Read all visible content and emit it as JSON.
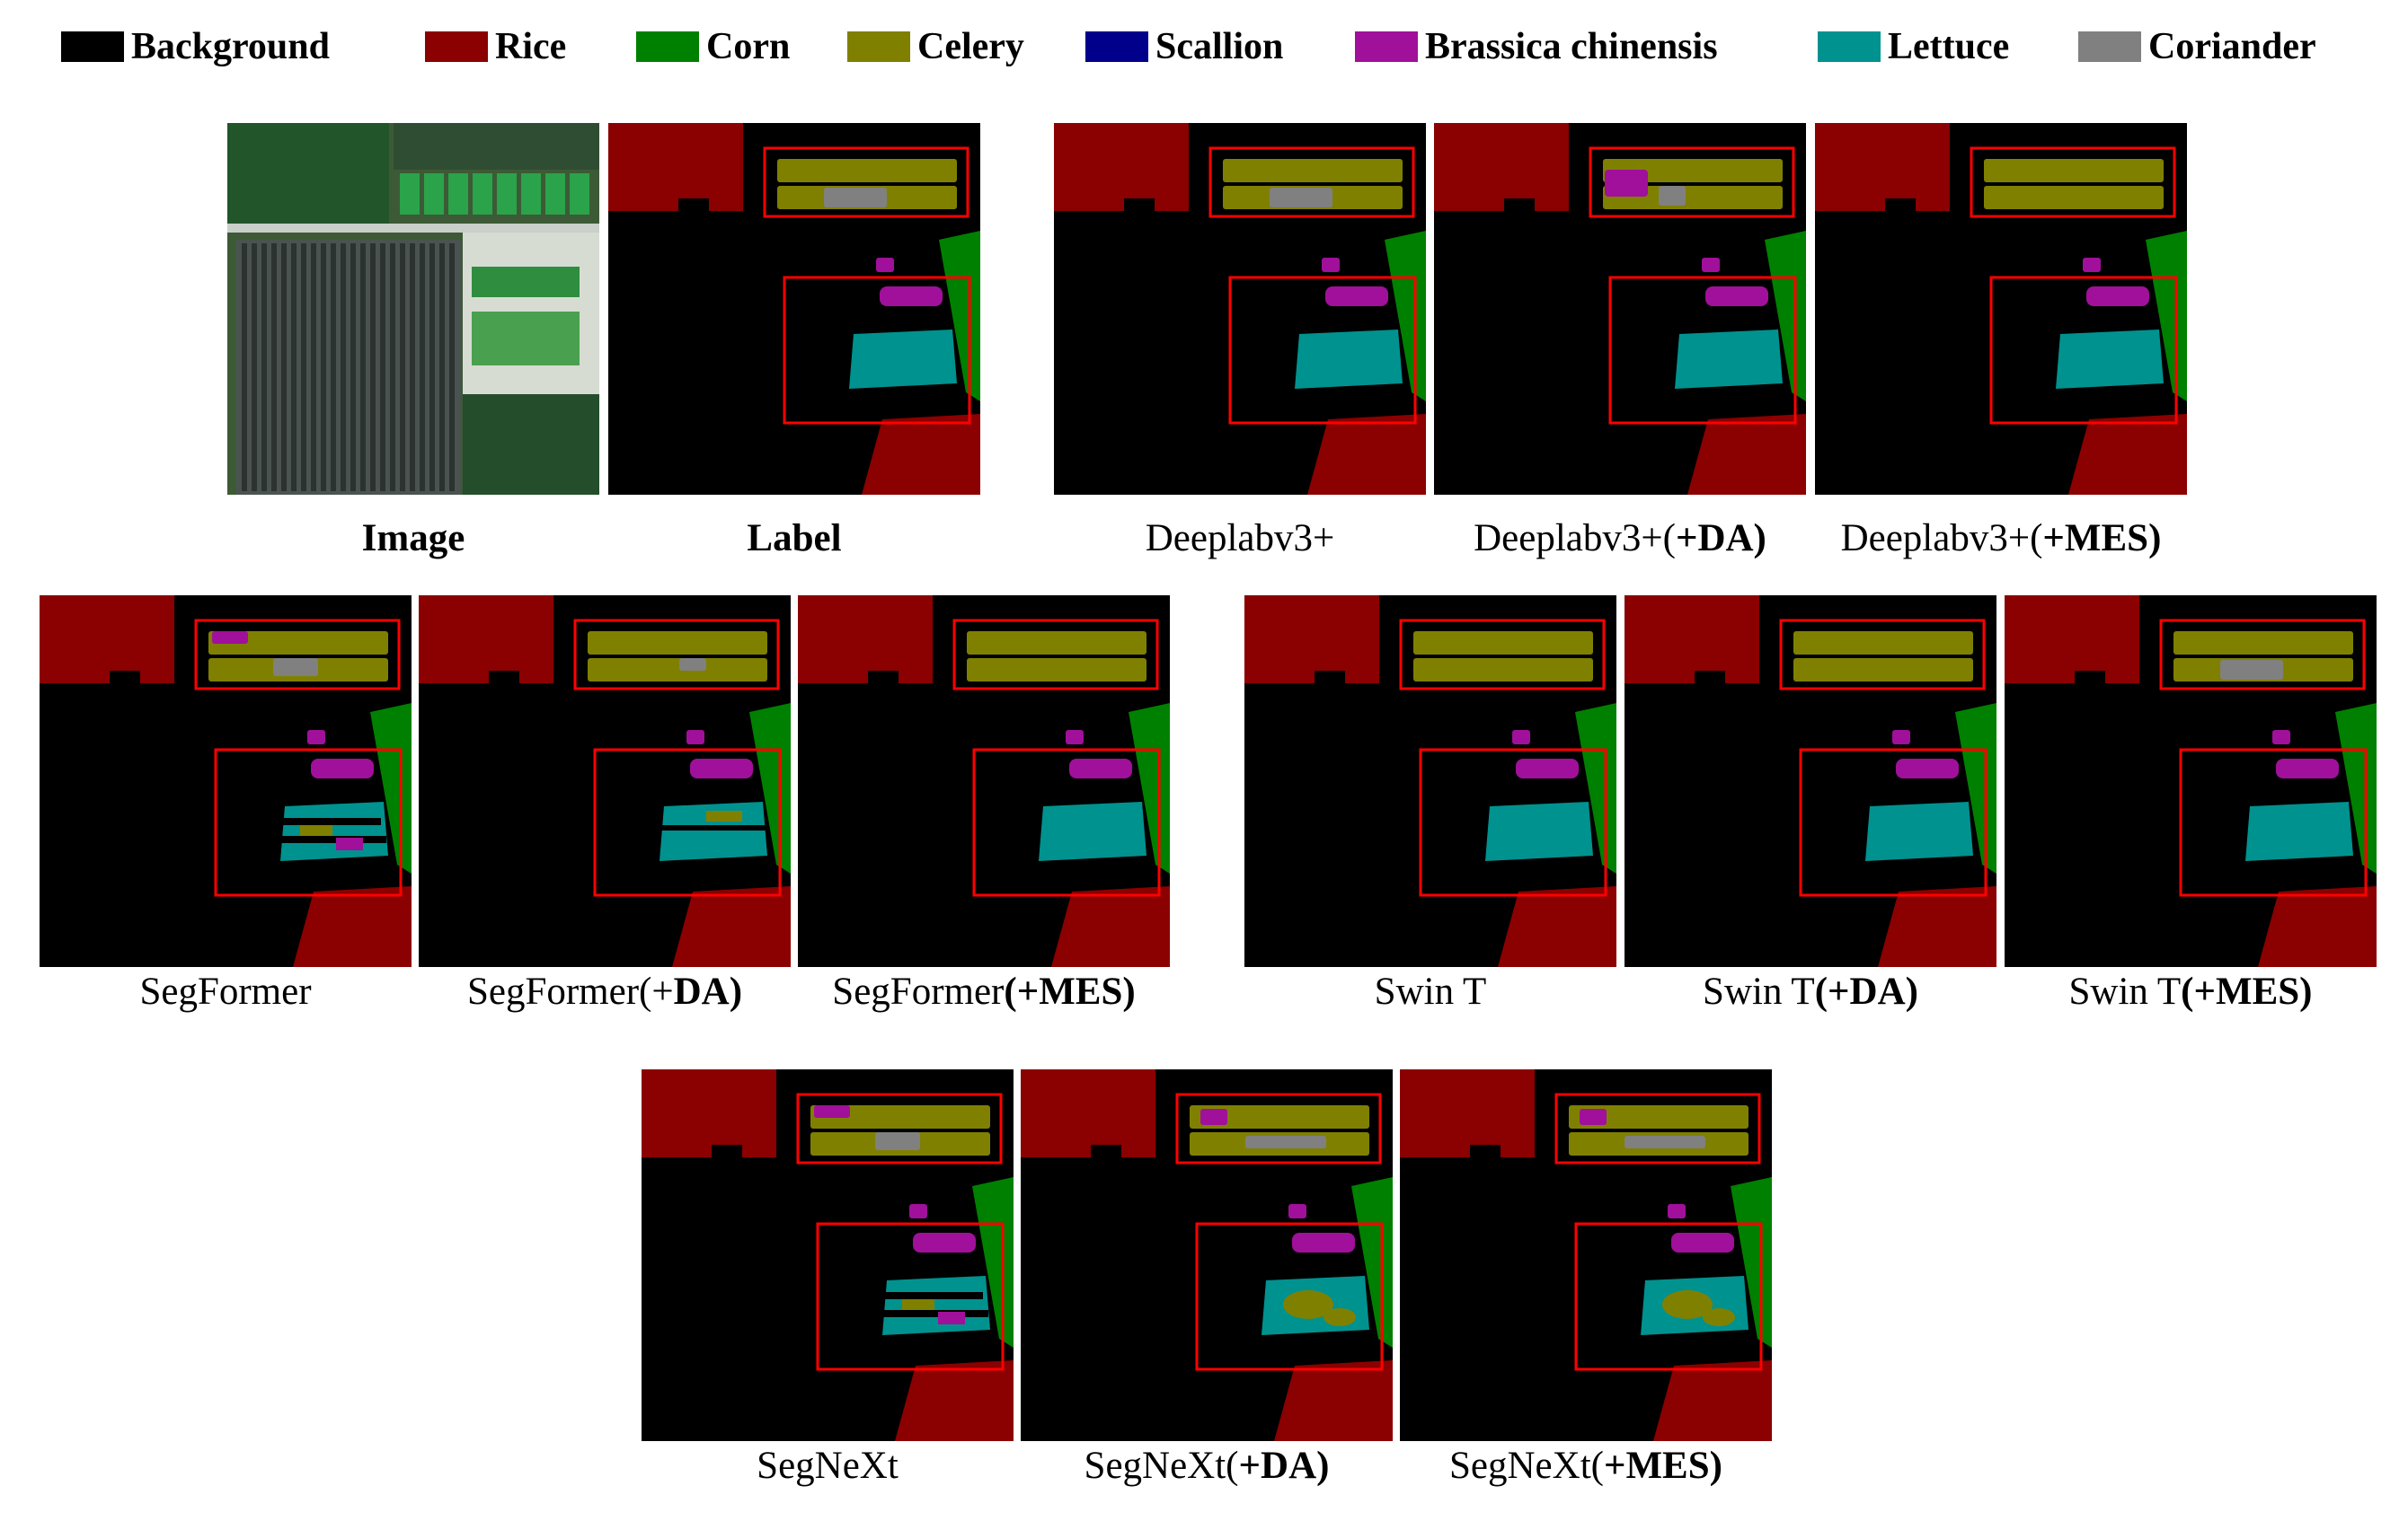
{
  "legend": [
    {
      "label": "Background",
      "color": "#000000"
    },
    {
      "label": "Rice",
      "color": "#8b0000"
    },
    {
      "label": "Corn",
      "color": "#008000"
    },
    {
      "label": "Celery",
      "color": "#808000"
    },
    {
      "label": "Scallion",
      "color": "#00008b"
    },
    {
      "label": "Brassica chinensis",
      "color": "#a0109a"
    },
    {
      "label": "Lettuce",
      "color": "#00928f"
    },
    {
      "label": "Coriander",
      "color": "#808080"
    }
  ],
  "panels": [
    {
      "id": "image",
      "caption_plain": "",
      "caption_bold": "Image",
      "variant": "photo"
    },
    {
      "id": "label",
      "caption_plain": "",
      "caption_bold": "Label",
      "variant": "gt"
    },
    {
      "id": "deeplab",
      "caption_plain": "Deeplabv3+",
      "caption_bold": "",
      "variant": "coriander"
    },
    {
      "id": "deeplab-da",
      "caption_plain": "Deeplabv3+(",
      "caption_bold": "+DA)",
      "variant": "brassica"
    },
    {
      "id": "deeplab-mes",
      "caption_plain": "Deeplabv3+(",
      "caption_bold": "+MES)",
      "variant": "clean"
    },
    {
      "id": "segformer",
      "caption_plain": "SegFormer",
      "caption_bold": "",
      "variant": "mixed"
    },
    {
      "id": "segformer-da",
      "caption_plain": "SegFormer(+",
      "caption_bold": "DA)",
      "variant": "noisy"
    },
    {
      "id": "segformer-mes",
      "caption_plain": "SegFormer",
      "caption_bold": "(+MES)",
      "variant": "clean"
    },
    {
      "id": "swin",
      "caption_plain": "Swin T",
      "caption_bold": "",
      "variant": "clean"
    },
    {
      "id": "swin-da",
      "caption_plain": "Swin T",
      "caption_bold": "(+DA)",
      "variant": "clean"
    },
    {
      "id": "swin-mes",
      "caption_plain": "Swin T",
      "caption_bold": "(+MES)",
      "variant": "coriander"
    },
    {
      "id": "segnext",
      "caption_plain": "SegNeXt",
      "caption_bold": "",
      "variant": "mixed"
    },
    {
      "id": "segnext-da",
      "caption_plain": "SegNeXt(",
      "caption_bold": "+DA)",
      "variant": "blobby"
    },
    {
      "id": "segnext-mes",
      "caption_plain": "SegNeXt(",
      "caption_bold": "+MES)",
      "variant": "blobby"
    }
  ]
}
